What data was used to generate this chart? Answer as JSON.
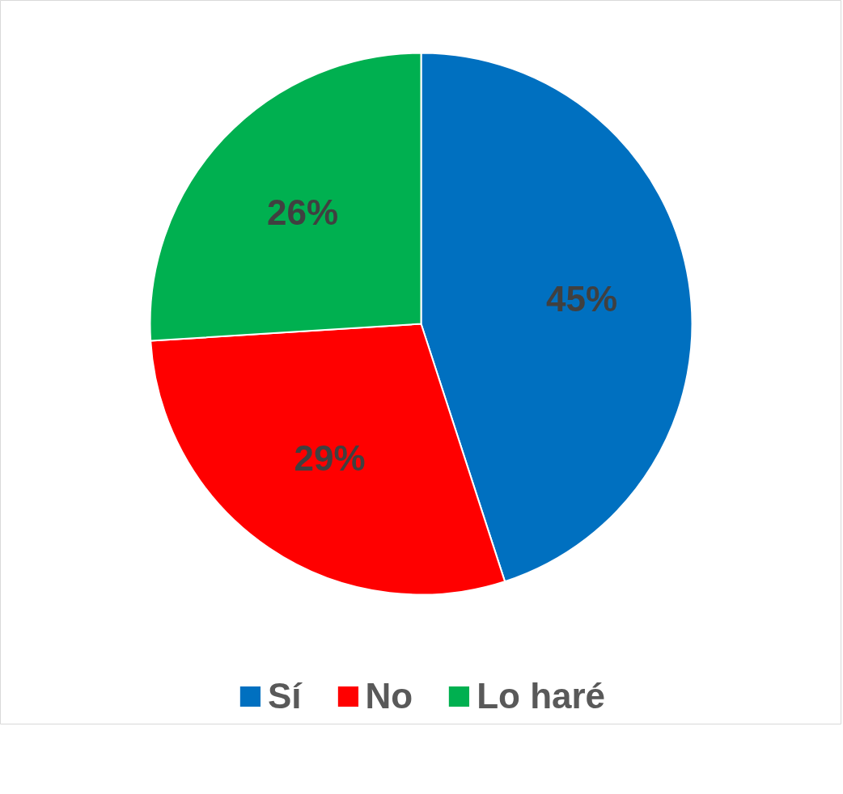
{
  "chart_data": {
    "type": "pie",
    "categories": [
      "Sí",
      "No",
      "Lo haré"
    ],
    "values": [
      45,
      29,
      26
    ],
    "colors": [
      "#0070c0",
      "#ff0000",
      "#00b050"
    ],
    "value_labels": [
      "45%",
      "29%",
      "26%"
    ],
    "legend": "bottom"
  }
}
